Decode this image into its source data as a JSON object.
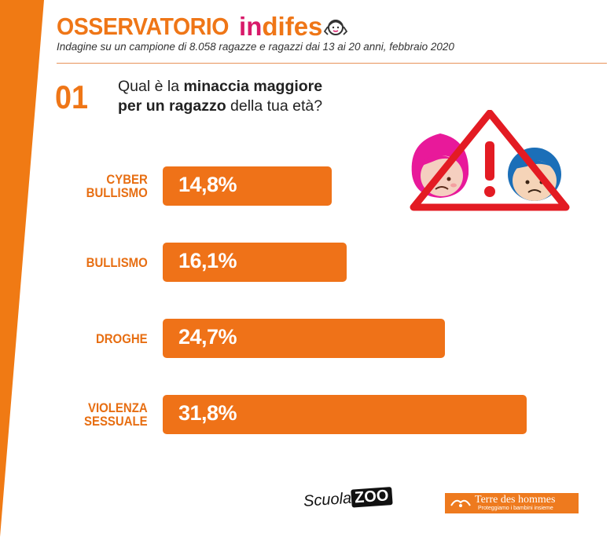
{
  "header": {
    "brand_main": "OSSERVATORIO",
    "brand_in": "in",
    "brand_rest": "difes",
    "subtitle": "Indagine su un campione di 8.058 ragazze e ragazzi dai 13 ai 20 anni, febbraio 2020"
  },
  "question": {
    "number": "01",
    "line1_pre": "Qual è la ",
    "line1_bold": "minaccia maggiore",
    "line2_bold": "per un ragazzo",
    "line2_post": " della tua età?"
  },
  "chart_data": {
    "type": "bar",
    "orientation": "horizontal",
    "categories": [
      "CYBER BULLISMO",
      "BULLISMO",
      "DROGHE",
      "VIOLENZA SESSUALE"
    ],
    "category_lines": [
      [
        "CYBER",
        "BULLISMO"
      ],
      [
        "BULLISMO"
      ],
      [
        "DROGHE"
      ],
      [
        "VIOLENZA",
        "SESSUALE"
      ]
    ],
    "values": [
      14.8,
      16.1,
      24.7,
      31.8
    ],
    "value_labels": [
      "14,8%",
      "16,1%",
      "24,7%",
      "31,8%"
    ],
    "unit": "%",
    "grid": false,
    "legend": "none",
    "bar_color": "#ef7218"
  },
  "footer": {
    "scuola_text": "Scuola",
    "scuola_zoo": "ZOO",
    "tdh_name": "Terre des hommes",
    "tdh_tagline": "Proteggiamo i bambini insieme"
  },
  "colors": {
    "accent": "#ef7617",
    "brand_pink": "#d81a6a",
    "warning_red": "#e31b23",
    "boy_blue": "#1b6fb8"
  },
  "icons": [
    "girl-logo-icon",
    "warning-triangle-icon",
    "sad-girl-icon",
    "sad-boy-icon",
    "tdh-logo-icon"
  ]
}
